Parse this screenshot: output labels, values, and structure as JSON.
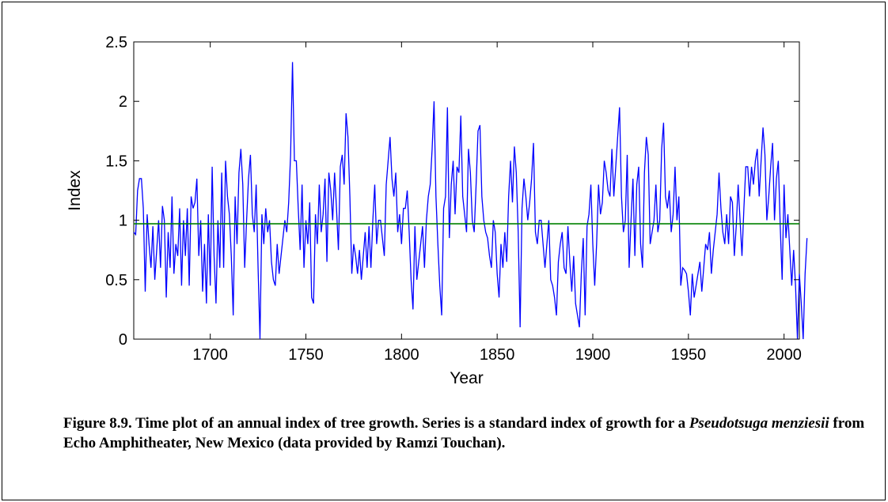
{
  "chart_data": {
    "type": "line",
    "xlabel": "Year",
    "ylabel": "Index",
    "xlim": [
      1660,
      2008
    ],
    "ylim": [
      0,
      2.5
    ],
    "x_ticks": [
      1700,
      1750,
      1800,
      1850,
      1900,
      1950,
      2000
    ],
    "y_ticks": [
      0,
      0.5,
      1,
      1.5,
      2,
      2.5
    ],
    "y_tick_labels": [
      "0",
      "0.5",
      "1",
      "1.5",
      "2",
      "2.5"
    ],
    "grid": false,
    "reference_line": {
      "y": 0.97,
      "color": "#008000"
    },
    "series": [
      {
        "color": "#0000ff",
        "start_year": 1660,
        "values": [
          0.9,
          0.88,
          1.25,
          1.35,
          1.35,
          1.1,
          0.4,
          1.05,
          0.8,
          0.6,
          0.95,
          0.5,
          0.75,
          1.0,
          0.6,
          1.12,
          1.0,
          0.35,
          0.9,
          0.6,
          1.2,
          0.55,
          0.8,
          0.7,
          1.1,
          0.45,
          1.0,
          0.7,
          1.1,
          0.45,
          1.2,
          1.1,
          1.15,
          1.35,
          0.7,
          1.0,
          0.4,
          0.8,
          0.3,
          1.05,
          0.45,
          1.45,
          0.7,
          0.3,
          1.0,
          0.6,
          1.4,
          0.6,
          1.5,
          1.2,
          1.05,
          0.7,
          0.2,
          1.2,
          0.8,
          1.4,
          1.6,
          1.3,
          0.6,
          1.0,
          1.35,
          1.55,
          1.05,
          0.9,
          1.3,
          0.6,
          0.0,
          1.05,
          0.8,
          1.1,
          0.9,
          1.0,
          0.65,
          0.5,
          0.45,
          0.8,
          0.55,
          0.7,
          0.85,
          1.0,
          0.9,
          1.15,
          1.55,
          2.33,
          1.5,
          1.5,
          1.1,
          0.75,
          1.3,
          0.6,
          1.0,
          0.8,
          1.15,
          0.35,
          0.3,
          1.05,
          0.8,
          1.3,
          0.9,
          1.05,
          1.35,
          0.65,
          1.4,
          1.25,
          1.0,
          1.4,
          1.1,
          0.75,
          1.45,
          1.55,
          1.3,
          1.9,
          1.7,
          1.2,
          0.55,
          0.8,
          0.7,
          0.55,
          0.75,
          0.5,
          0.7,
          0.9,
          0.6,
          0.95,
          0.6,
          1.0,
          1.3,
          0.8,
          1.0,
          1.0,
          0.85,
          0.7,
          1.3,
          1.5,
          1.7,
          1.35,
          1.2,
          1.4,
          0.9,
          1.05,
          0.8,
          1.1,
          1.1,
          1.25,
          0.9,
          0.5,
          0.25,
          0.95,
          0.5,
          0.65,
          0.8,
          0.95,
          0.6,
          1.0,
          1.2,
          1.3,
          1.6,
          2.0,
          1.2,
          0.8,
          0.45,
          0.2,
          1.1,
          1.2,
          1.95,
          0.85,
          1.3,
          1.5,
          1.05,
          1.45,
          1.4,
          1.88,
          1.2,
          1.05,
          0.9,
          1.6,
          1.4,
          1.0,
          0.9,
          1.3,
          1.75,
          1.8,
          1.2,
          1.0,
          0.9,
          0.85,
          0.7,
          0.6,
          1.0,
          0.9,
          0.55,
          0.35,
          0.8,
          0.6,
          0.9,
          0.65,
          1.2,
          1.5,
          1.15,
          1.62,
          1.4,
          0.9,
          0.1,
          1.1,
          1.35,
          1.2,
          1.0,
          1.15,
          1.35,
          1.65,
          0.9,
          0.8,
          1.0,
          1.0,
          0.8,
          0.6,
          0.8,
          1.0,
          0.5,
          0.45,
          0.35,
          0.2,
          0.65,
          0.8,
          0.9,
          0.6,
          0.55,
          0.95,
          0.65,
          0.4,
          0.7,
          0.3,
          0.2,
          0.1,
          0.55,
          0.85,
          0.2,
          0.95,
          1.05,
          1.3,
          0.8,
          0.45,
          0.8,
          1.3,
          1.05,
          1.15,
          1.5,
          1.4,
          1.25,
          1.2,
          1.6,
          1.2,
          1.45,
          1.7,
          1.95,
          1.2,
          0.9,
          1.0,
          1.55,
          0.6,
          1.0,
          1.35,
          0.7,
          1.3,
          1.45,
          0.8,
          0.6,
          1.4,
          1.7,
          1.55,
          0.8,
          0.9,
          1.0,
          1.3,
          0.9,
          1.0,
          1.6,
          1.82,
          1.2,
          1.1,
          1.25,
          0.9,
          1.05,
          1.45,
          1.0,
          1.2,
          0.45,
          0.6,
          0.58,
          0.55,
          0.4,
          0.2,
          0.55,
          0.35,
          0.45,
          0.55,
          0.65,
          0.4,
          0.6,
          0.8,
          0.75,
          0.9,
          0.55,
          0.75,
          0.9,
          1.05,
          1.4,
          1.1,
          0.9,
          0.8,
          1.05,
          0.8,
          1.2,
          1.15,
          0.7,
          0.95,
          1.3,
          1.0,
          0.7,
          1.1,
          1.45,
          1.45,
          1.2,
          1.45,
          1.3,
          1.5,
          1.6,
          1.2,
          1.5,
          1.78,
          1.55,
          1.0,
          1.2,
          1.45,
          1.65,
          1.0,
          1.35,
          1.5,
          0.95,
          0.5,
          1.3,
          0.85,
          1.05,
          0.75,
          0.45,
          0.75,
          0.45,
          0.0,
          0.55,
          0.3,
          0.0,
          0.55,
          0.85
        ]
      }
    ]
  },
  "caption": {
    "part1": "Figure 8.9.  Time plot of an annual index of tree growth.  Series is a standard index of growth for a ",
    "species": "Pseudotsuga menziesii",
    "part2": " from Echo Amphitheater, New Mexico (data provided by Ramzi Touchan)."
  }
}
